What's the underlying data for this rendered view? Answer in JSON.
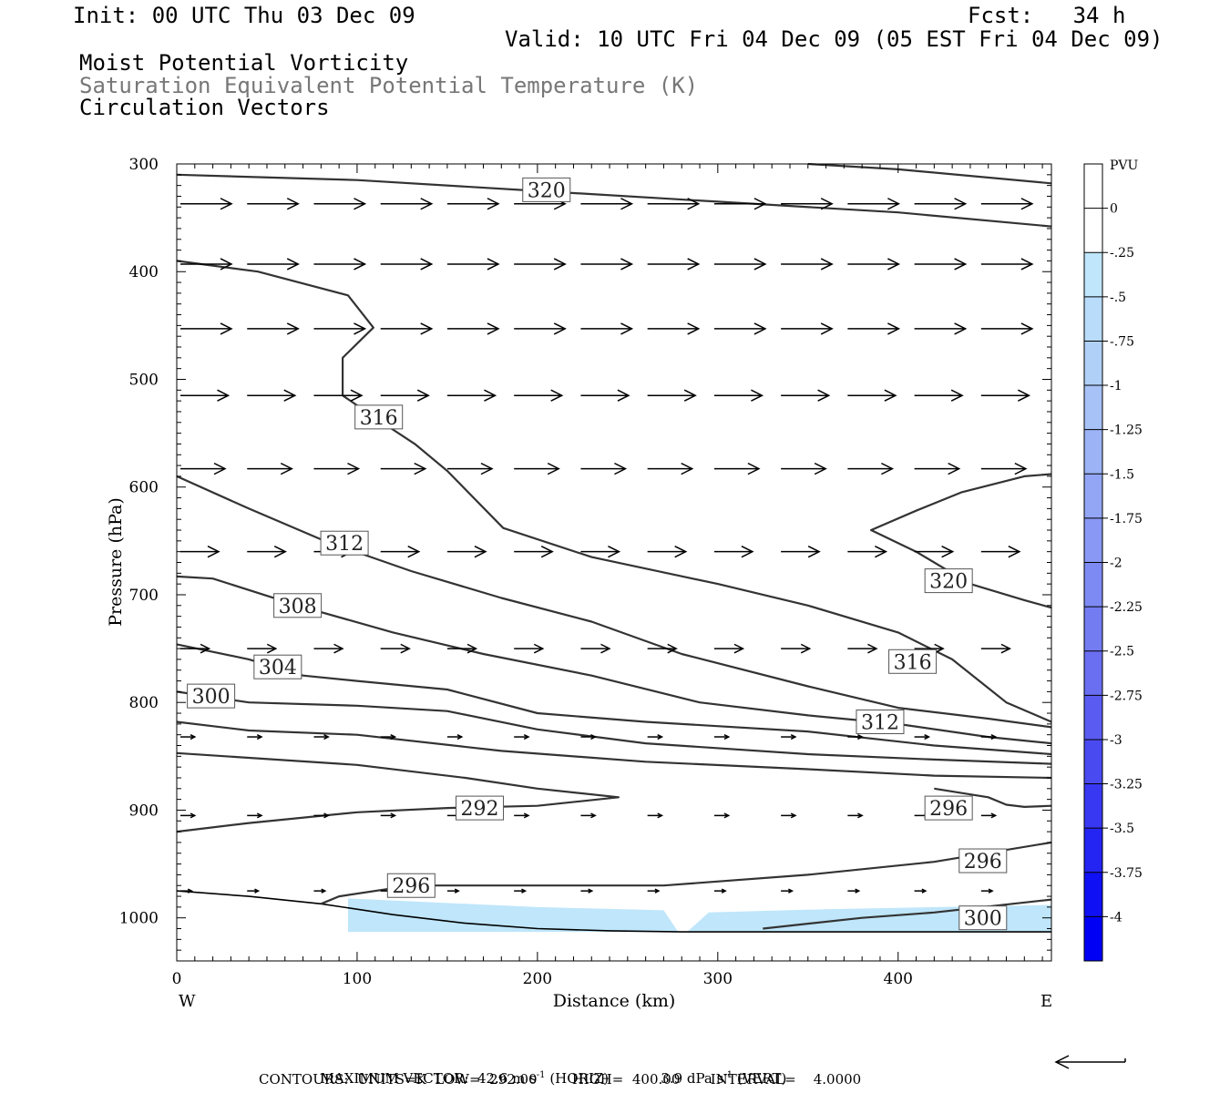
{
  "header": {
    "init": "Init: 00 UTC Thu 03 Dec 09",
    "fcst": "Fcst:   34 h",
    "valid": "Valid: 10 UTC Fri 04 Dec 09 (05 EST Fri 04 Dec 09)",
    "title1": "Moist Potential Vorticity",
    "title2": "Saturation Equivalent Potential Temperature (K)",
    "title3": "Circulation Vectors"
  },
  "footer": {
    "max_vector_label": "MAXIMUM VECTOR:",
    "horiz_val": "42.6 m s",
    "horiz_unit": "(HORIZ)",
    "vert_val": "3.9 dPa s",
    "vert_unit": "(VERT)",
    "exp": "-1",
    "contours": "CONTOURS:  UNITS=K  LOW=  292.00        HIGH=  400.00       INTERVAL=    4.0000"
  },
  "colors": {
    "contour": "#333333",
    "pv_light": "#bfe6fb",
    "pv_mid": "#a8c8f8"
  },
  "chart_data": {
    "type": "cross-section contour + vector",
    "xlabel": "Distance (km)",
    "ylabel": "Pressure (hPa)",
    "xlim": [
      0,
      485
    ],
    "ylim": [
      1040,
      300
    ],
    "y_scale": "linear pressure, inverted",
    "x_ticks": [
      0,
      100,
      200,
      300,
      400
    ],
    "y_ticks": [
      300,
      400,
      500,
      600,
      700,
      800,
      900,
      1000
    ],
    "left_end_label": "W",
    "right_end_label": "E",
    "colorbar": {
      "title": "PVU",
      "labels": [
        "0",
        "-.25",
        "-.5",
        "-.75",
        "-1",
        "-1.25",
        "-1.5",
        "-1.75",
        "-2",
        "-2.25",
        "-2.5",
        "-2.75",
        "-3",
        "-3.25",
        "-3.5",
        "-3.75",
        "-4"
      ],
      "colors": [
        "#ffffff",
        "#ffffff",
        "#bfe6fb",
        "#b8dcfa",
        "#b0d0f8",
        "#a6c2f7",
        "#9cb4f6",
        "#92a6f5",
        "#8898f4",
        "#7e8af3",
        "#747cf2",
        "#6a6ef1",
        "#5a5cf1",
        "#4a4af1",
        "#3838f2",
        "#2424f3",
        "#1010f4",
        "#0000f5"
      ]
    },
    "contour_labels": [
      {
        "value": "320",
        "x": 205,
        "p": 324
      },
      {
        "value": "316",
        "x": 112,
        "p": 535
      },
      {
        "value": "312",
        "x": 93,
        "p": 652
      },
      {
        "value": "308",
        "x": 67,
        "p": 710
      },
      {
        "value": "304",
        "x": 56,
        "p": 767
      },
      {
        "value": "300",
        "x": 19,
        "p": 794
      },
      {
        "value": "292",
        "x": 168,
        "p": 898
      },
      {
        "value": "296",
        "x": 130,
        "p": 970
      },
      {
        "value": "320",
        "x": 428,
        "p": 687
      },
      {
        "value": "316",
        "x": 408,
        "p": 762
      },
      {
        "value": "312",
        "x": 390,
        "p": 818
      },
      {
        "value": "296",
        "x": 428,
        "p": 898
      },
      {
        "value": "296",
        "x": 447,
        "p": 947
      },
      {
        "value": "300",
        "x": 447,
        "p": 1000
      }
    ],
    "contours": [
      {
        "level": 320,
        "points": [
          [
            0,
            310
          ],
          [
            100,
            315
          ],
          [
            200,
            325
          ],
          [
            300,
            335
          ],
          [
            400,
            345
          ],
          [
            485,
            358
          ]
        ]
      },
      {
        "level": 320,
        "points": [
          [
            350,
            300
          ],
          [
            400,
            305
          ],
          [
            485,
            318
          ]
        ]
      },
      {
        "level": 316,
        "points": [
          [
            0,
            390
          ],
          [
            45,
            400
          ],
          [
            95,
            422
          ],
          [
            109,
            452
          ],
          [
            92,
            480
          ],
          [
            92,
            515
          ],
          [
            112,
            538
          ],
          [
            132,
            560
          ],
          [
            150,
            585
          ],
          [
            181,
            638
          ],
          [
            230,
            665
          ],
          [
            300,
            690
          ],
          [
            350,
            710
          ],
          [
            400,
            735
          ],
          [
            430,
            760
          ],
          [
            460,
            800
          ],
          [
            485,
            818
          ]
        ]
      },
      {
        "level": 312,
        "points": [
          [
            0,
            590
          ],
          [
            40,
            620
          ],
          [
            82,
            650
          ],
          [
            130,
            678
          ],
          [
            180,
            703
          ],
          [
            230,
            725
          ],
          [
            280,
            755
          ],
          [
            350,
            785
          ],
          [
            400,
            805
          ],
          [
            450,
            815
          ],
          [
            485,
            823
          ]
        ]
      },
      {
        "level": 320,
        "points": [
          [
            485,
            588
          ],
          [
            470,
            590
          ],
          [
            435,
            605
          ],
          [
            410,
            622
          ],
          [
            385,
            640
          ],
          [
            410,
            660
          ],
          [
            440,
            690
          ],
          [
            470,
            705
          ],
          [
            485,
            712
          ]
        ]
      },
      {
        "level": 308,
        "points": [
          [
            0,
            683
          ],
          [
            20,
            685
          ],
          [
            67,
            710
          ],
          [
            120,
            735
          ],
          [
            170,
            755
          ],
          [
            230,
            775
          ],
          [
            290,
            800
          ],
          [
            350,
            812
          ],
          [
            400,
            820
          ],
          [
            450,
            832
          ],
          [
            485,
            838
          ]
        ]
      },
      {
        "level": 304,
        "points": [
          [
            0,
            746
          ],
          [
            40,
            760
          ],
          [
            70,
            775
          ],
          [
            100,
            780
          ],
          [
            150,
            788
          ],
          [
            200,
            810
          ],
          [
            260,
            818
          ],
          [
            350,
            827
          ],
          [
            420,
            840
          ],
          [
            485,
            848
          ]
        ]
      },
      {
        "level": 300,
        "points": [
          [
            0,
            790
          ],
          [
            40,
            800
          ],
          [
            100,
            803
          ],
          [
            150,
            808
          ],
          [
            200,
            825
          ],
          [
            260,
            838
          ],
          [
            350,
            848
          ],
          [
            420,
            853
          ],
          [
            485,
            857
          ]
        ]
      },
      {
        "level": 296,
        "points": [
          [
            0,
            818
          ],
          [
            40,
            826
          ],
          [
            100,
            830
          ],
          [
            180,
            845
          ],
          [
            260,
            855
          ],
          [
            350,
            862
          ],
          [
            420,
            868
          ],
          [
            485,
            870
          ]
        ]
      },
      {
        "level": 292,
        "points": [
          [
            0,
            847
          ],
          [
            100,
            858
          ],
          [
            160,
            870
          ],
          [
            200,
            880
          ],
          [
            245,
            888
          ],
          [
            200,
            896
          ],
          [
            150,
            898
          ],
          [
            100,
            902
          ],
          [
            40,
            912
          ],
          [
            0,
            920
          ]
        ]
      },
      {
        "level": 296,
        "points": [
          [
            420,
            880
          ],
          [
            450,
            888
          ],
          [
            460,
            895
          ],
          [
            470,
            897
          ],
          [
            485,
            896
          ]
        ]
      },
      {
        "level": 296,
        "points": [
          [
            80,
            987
          ],
          [
            90,
            980
          ],
          [
            130,
            970
          ],
          [
            200,
            970
          ],
          [
            270,
            970
          ],
          [
            350,
            960
          ],
          [
            420,
            948
          ],
          [
            485,
            930
          ]
        ]
      },
      {
        "level": 300,
        "points": [
          [
            325,
            1010
          ],
          [
            380,
            1000
          ],
          [
            420,
            995
          ],
          [
            485,
            983
          ]
        ]
      }
    ],
    "terrain": [
      [
        0,
        975
      ],
      [
        40,
        980
      ],
      [
        80,
        987
      ],
      [
        120,
        997
      ],
      [
        160,
        1005
      ],
      [
        200,
        1010
      ],
      [
        240,
        1012
      ],
      [
        280,
        1013
      ],
      [
        320,
        1013
      ],
      [
        485,
        1013
      ]
    ],
    "pv_shading": [
      {
        "level": "-.25",
        "points": [
          [
            95,
            982
          ],
          [
            200,
            990
          ],
          [
            270,
            993
          ],
          [
            278,
            1013
          ],
          [
            95,
            1013
          ]
        ]
      },
      {
        "level": "-.25",
        "points": [
          [
            283,
            1013
          ],
          [
            295,
            995
          ],
          [
            360,
            992
          ],
          [
            485,
            988
          ],
          [
            485,
            1013
          ]
        ]
      }
    ],
    "vector_rows": [
      {
        "p": 337,
        "xs": [
          0,
          37,
          74,
          111,
          148,
          185,
          222,
          259,
          296,
          333,
          370,
          407,
          444
        ],
        "u": 32,
        "w": 0
      },
      {
        "p": 393,
        "xs": [
          0,
          37,
          74,
          111,
          148,
          185,
          222,
          259,
          296,
          333,
          370,
          407,
          444
        ],
        "u": 32,
        "w": 0
      },
      {
        "p": 453,
        "xs": [
          0,
          37,
          74,
          111,
          148,
          185,
          222,
          259,
          296,
          333,
          370,
          407,
          444
        ],
        "u": 32,
        "w": 0
      },
      {
        "p": 515,
        "xs": [
          0,
          37,
          74,
          111,
          148,
          185,
          222,
          259,
          296,
          333,
          370,
          407,
          444
        ],
        "u": 30,
        "w": 0
      },
      {
        "p": 583,
        "xs": [
          0,
          37,
          74,
          111,
          148,
          185,
          222,
          259,
          296,
          333,
          370,
          407,
          444
        ],
        "u": 28,
        "w": 0
      },
      {
        "p": 660,
        "xs": [
          0,
          37,
          74,
          111,
          148,
          185,
          222,
          259,
          296,
          333,
          370,
          407,
          444
        ],
        "u": 24,
        "w": 0
      },
      {
        "p": 750,
        "xs": [
          0,
          37,
          74,
          111,
          148,
          185,
          222,
          259,
          296,
          333,
          370,
          407,
          444
        ],
        "u": 18,
        "w": 0
      },
      {
        "p": 832,
        "xs": [
          0,
          37,
          74,
          111,
          148,
          185,
          222,
          259,
          296,
          333,
          370,
          407,
          444
        ],
        "u": 9,
        "w": 0
      },
      {
        "p": 905,
        "xs": [
          0,
          37,
          74,
          111,
          148,
          185,
          222,
          259,
          296,
          333,
          370,
          407,
          444
        ],
        "u": 9,
        "w": 0
      },
      {
        "p": 975,
        "xs": [
          0,
          37,
          74,
          111,
          148,
          185,
          222,
          259,
          296,
          333,
          370,
          407,
          444
        ],
        "u": 7,
        "w": 0
      }
    ],
    "reference_vector_direction": "left"
  }
}
